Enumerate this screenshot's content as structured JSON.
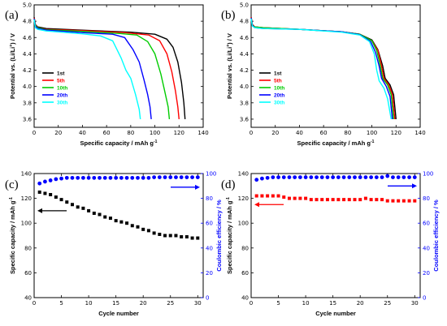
{
  "colors": {
    "black": "#000000",
    "red": "#ff0000",
    "green": "#00cc00",
    "blue": "#0000ff",
    "cyan": "#00ffff",
    "squares": "#000000",
    "circles": "#0000ff",
    "red_series": "#ff0000"
  },
  "chart_data": [
    {
      "panel_label": "(a)",
      "type": "line",
      "xlabel": "Specific capacity / mAh g",
      "xlabel_sup": "-1",
      "ylabel": "Potential vs. (Li/Li",
      "ylabel_sup": "+",
      "ylabel_tail": ") / V",
      "xlim": [
        0,
        140
      ],
      "ylim": [
        3.5,
        5.0
      ],
      "xticks": [
        "0",
        "20",
        "40",
        "60",
        "80",
        "100",
        "120",
        "140"
      ],
      "yticks": [
        "3.6",
        "3.8",
        "4.0",
        "4.2",
        "4.4",
        "4.6",
        "4.8",
        "5.0"
      ],
      "legend_position": "left-center",
      "series": [
        {
          "name": "1st",
          "color": "#000000",
          "points": [
            [
              0,
              4.85
            ],
            [
              1,
              4.76
            ],
            [
              3,
              4.73
            ],
            [
              10,
              4.71
            ],
            [
              40,
              4.69
            ],
            [
              80,
              4.665
            ],
            [
              100,
              4.64
            ],
            [
              110,
              4.58
            ],
            [
              115,
              4.48
            ],
            [
              119,
              4.3
            ],
            [
              122,
              4.05
            ],
            [
              124,
              3.8
            ],
            [
              125,
              3.6
            ]
          ]
        },
        {
          "name": "5th",
          "color": "#ff0000",
          "points": [
            [
              0,
              4.84
            ],
            [
              1,
              4.76
            ],
            [
              3,
              4.72
            ],
            [
              10,
              4.7
            ],
            [
              40,
              4.685
            ],
            [
              75,
              4.66
            ],
            [
              95,
              4.63
            ],
            [
              104,
              4.56
            ],
            [
              110,
              4.4
            ],
            [
              114,
              4.18
            ],
            [
              117,
              3.95
            ],
            [
              119,
              3.75
            ],
            [
              120,
              3.6
            ]
          ]
        },
        {
          "name": "10th",
          "color": "#00cc00",
          "points": [
            [
              0,
              4.83
            ],
            [
              1,
              4.75
            ],
            [
              3,
              4.72
            ],
            [
              10,
              4.695
            ],
            [
              40,
              4.675
            ],
            [
              70,
              4.65
            ],
            [
              85,
              4.63
            ],
            [
              94,
              4.55
            ],
            [
              100,
              4.4
            ],
            [
              105,
              4.15
            ],
            [
              108,
              3.95
            ],
            [
              111,
              3.75
            ],
            [
              112,
              3.6
            ]
          ]
        },
        {
          "name": "20th",
          "color": "#0000ff",
          "points": [
            [
              0,
              4.83
            ],
            [
              1,
              4.74
            ],
            [
              3,
              4.71
            ],
            [
              10,
              4.69
            ],
            [
              40,
              4.66
            ],
            [
              65,
              4.64
            ],
            [
              75,
              4.6
            ],
            [
              82,
              4.45
            ],
            [
              87,
              4.3
            ],
            [
              91,
              4.08
            ],
            [
              94,
              3.9
            ],
            [
              96,
              3.75
            ],
            [
              97,
              3.6
            ]
          ]
        },
        {
          "name": "30th",
          "color": "#00ffff",
          "points": [
            [
              0,
              4.82
            ],
            [
              1,
              4.72
            ],
            [
              3,
              4.7
            ],
            [
              10,
              4.68
            ],
            [
              40,
              4.645
            ],
            [
              55,
              4.62
            ],
            [
              65,
              4.56
            ],
            [
              72,
              4.35
            ],
            [
              76,
              4.2
            ],
            [
              80,
              4.1
            ],
            [
              84,
              3.9
            ],
            [
              87,
              3.72
            ],
            [
              88,
              3.6
            ]
          ]
        }
      ]
    },
    {
      "panel_label": "(b)",
      "type": "line",
      "xlabel": "Specific capacity / mAh g",
      "xlabel_sup": "-1",
      "ylabel": "Potential vs. (Li/Li",
      "ylabel_sup": "+",
      "ylabel_tail": ") / V",
      "xlim": [
        0,
        140
      ],
      "ylim": [
        3.5,
        5.0
      ],
      "xticks": [
        "0",
        "20",
        "40",
        "60",
        "80",
        "100",
        "120",
        "140"
      ],
      "yticks": [
        "3.6",
        "3.8",
        "4.0",
        "4.2",
        "4.4",
        "4.6",
        "4.8",
        "5.0"
      ],
      "legend_position": "left-center",
      "series": [
        {
          "name": "1st",
          "color": "#000000",
          "points": [
            [
              0,
              4.85
            ],
            [
              1,
              4.76
            ],
            [
              3,
              4.73
            ],
            [
              10,
              4.72
            ],
            [
              40,
              4.7
            ],
            [
              75,
              4.67
            ],
            [
              90,
              4.64
            ],
            [
              100,
              4.57
            ],
            [
              105,
              4.45
            ],
            [
              109,
              4.25
            ],
            [
              111,
              4.1
            ],
            [
              115,
              4.02
            ],
            [
              118,
              3.9
            ],
            [
              120,
              3.6
            ]
          ]
        },
        {
          "name": "5th",
          "color": "#ff0000",
          "points": [
            [
              0,
              4.85
            ],
            [
              1,
              4.76
            ],
            [
              3,
              4.73
            ],
            [
              10,
              4.72
            ],
            [
              40,
              4.7
            ],
            [
              75,
              4.67
            ],
            [
              90,
              4.64
            ],
            [
              100,
              4.56
            ],
            [
              105,
              4.44
            ],
            [
              108,
              4.25
            ],
            [
              110,
              4.1
            ],
            [
              114,
              4.02
            ],
            [
              117,
              3.9
            ],
            [
              119,
              3.6
            ]
          ]
        },
        {
          "name": "10th",
          "color": "#00cc00",
          "points": [
            [
              0,
              4.84
            ],
            [
              1,
              4.75
            ],
            [
              3,
              4.73
            ],
            [
              10,
              4.72
            ],
            [
              40,
              4.7
            ],
            [
              75,
              4.67
            ],
            [
              90,
              4.64
            ],
            [
              100,
              4.56
            ],
            [
              104,
              4.44
            ],
            [
              107,
              4.25
            ],
            [
              109,
              4.1
            ],
            [
              113,
              4.02
            ],
            [
              116,
              3.9
            ],
            [
              118,
              3.6
            ]
          ]
        },
        {
          "name": "20th",
          "color": "#0000ff",
          "points": [
            [
              0,
              4.84
            ],
            [
              1,
              4.75
            ],
            [
              3,
              4.72
            ],
            [
              10,
              4.71
            ],
            [
              40,
              4.7
            ],
            [
              75,
              4.67
            ],
            [
              90,
              4.635
            ],
            [
              99,
              4.55
            ],
            [
              103,
              4.42
            ],
            [
              106,
              4.25
            ],
            [
              108,
              4.1
            ],
            [
              112,
              4.0
            ],
            [
              115,
              3.88
            ],
            [
              117,
              3.6
            ]
          ]
        },
        {
          "name": "30th",
          "color": "#00ffff",
          "points": [
            [
              0,
              4.83
            ],
            [
              1,
              4.74
            ],
            [
              3,
              4.72
            ],
            [
              10,
              4.71
            ],
            [
              40,
              4.7
            ],
            [
              75,
              4.665
            ],
            [
              90,
              4.63
            ],
            [
              98,
              4.55
            ],
            [
              102,
              4.4
            ],
            [
              104,
              4.2
            ],
            [
              106,
              4.07
            ],
            [
              110,
              3.98
            ],
            [
              113,
              3.85
            ],
            [
              116,
              3.6
            ]
          ]
        }
      ]
    },
    {
      "panel_label": "(c)",
      "type": "scatter",
      "xlabel": "Cycle number",
      "ylabel": "Specific capacity / mAh g",
      "ylabel_sup": "-1",
      "y2label": "Coulombic efficiency / %",
      "xlim": [
        0,
        31
      ],
      "ylim": [
        40,
        140
      ],
      "y2lim": [
        0,
        100
      ],
      "xticks": [
        "0",
        "5",
        "10",
        "15",
        "20",
        "25",
        "30"
      ],
      "yticks": [
        "40",
        "60",
        "80",
        "100",
        "120",
        "140"
      ],
      "y2ticks": [
        "0",
        "20",
        "40",
        "60",
        "80",
        "100"
      ],
      "series": [
        {
          "marker": "square",
          "color": "#000000",
          "axis": "left",
          "x": [
            1,
            2,
            3,
            4,
            5,
            6,
            7,
            8,
            9,
            10,
            11,
            12,
            13,
            14,
            15,
            16,
            17,
            18,
            19,
            20,
            21,
            22,
            23,
            24,
            25,
            26,
            27,
            28,
            29,
            30
          ],
          "y": [
            125,
            124,
            123,
            121,
            119,
            117,
            115,
            113,
            112,
            110,
            108,
            107,
            105,
            104,
            102,
            101,
            100,
            98,
            97,
            95,
            94,
            92,
            91,
            90,
            90,
            90,
            89,
            89,
            88,
            88
          ]
        },
        {
          "marker": "circle",
          "color": "#0000ff",
          "axis": "right",
          "x": [
            1,
            2,
            3,
            4,
            5,
            6,
            7,
            8,
            9,
            10,
            11,
            12,
            13,
            14,
            15,
            16,
            17,
            18,
            19,
            20,
            21,
            22,
            23,
            24,
            25,
            26,
            27,
            28,
            29,
            30
          ],
          "y": [
            92,
            93.5,
            94.5,
            95.5,
            96,
            96.5,
            96.5,
            96.5,
            96.5,
            96.5,
            96.5,
            96.5,
            96.5,
            96.5,
            96.5,
            96.5,
            96.5,
            96.5,
            96.5,
            96.5,
            96.5,
            97,
            97,
            97,
            97,
            97,
            97,
            97,
            97,
            97
          ]
        }
      ],
      "arrows": [
        {
          "direction": "left",
          "color": "#000000"
        },
        {
          "direction": "right",
          "color": "#0000ff"
        }
      ]
    },
    {
      "panel_label": "(d)",
      "type": "scatter",
      "xlabel": "Cycle number",
      "ylabel": "Specific capacity / mAh g",
      "ylabel_sup": "-1",
      "y2label": "Coulombic efficiency / %",
      "xlim": [
        0,
        31
      ],
      "ylim": [
        40,
        140
      ],
      "y2lim": [
        0,
        100
      ],
      "xticks": [
        "0",
        "5",
        "10",
        "15",
        "20",
        "25",
        "30"
      ],
      "yticks": [
        "40",
        "60",
        "80",
        "100",
        "120",
        "140"
      ],
      "y2ticks": [
        "0",
        "20",
        "40",
        "60",
        "80",
        "100"
      ],
      "series": [
        {
          "marker": "square",
          "color": "#ff0000",
          "axis": "left",
          "x": [
            1,
            2,
            3,
            4,
            5,
            6,
            7,
            8,
            9,
            10,
            11,
            12,
            13,
            14,
            15,
            16,
            17,
            18,
            19,
            20,
            21,
            22,
            23,
            24,
            25,
            26,
            27,
            28,
            29,
            30
          ],
          "y": [
            122,
            122,
            122,
            122,
            122,
            121,
            120,
            120,
            120,
            120,
            119,
            119,
            119,
            119,
            119,
            119,
            119,
            119,
            119,
            119,
            120,
            119,
            119,
            119,
            118,
            118,
            118,
            118,
            118,
            118
          ]
        },
        {
          "marker": "circle",
          "color": "#0000ff",
          "axis": "right",
          "x": [
            1,
            2,
            3,
            4,
            5,
            6,
            7,
            8,
            9,
            10,
            11,
            12,
            13,
            14,
            15,
            16,
            17,
            18,
            19,
            20,
            21,
            22,
            23,
            24,
            25,
            26,
            27,
            28,
            29,
            30
          ],
          "y": [
            95,
            96,
            96.5,
            97,
            97,
            97,
            97,
            97,
            97,
            97,
            97,
            97,
            97,
            97,
            97,
            97,
            97,
            97,
            97,
            97,
            97,
            97,
            97,
            97,
            98,
            97,
            97,
            97,
            97,
            97
          ]
        }
      ],
      "arrows": [
        {
          "direction": "left",
          "color": "#ff0000"
        },
        {
          "direction": "right",
          "color": "#0000ff"
        }
      ]
    }
  ]
}
